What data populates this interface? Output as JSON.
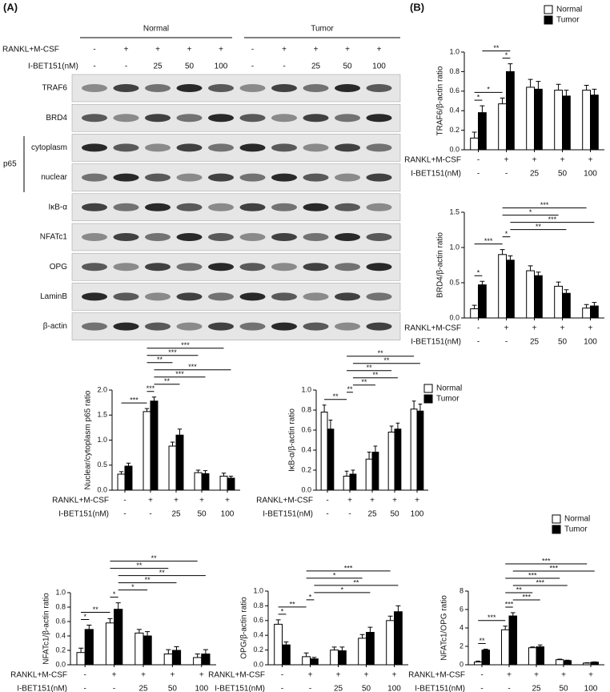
{
  "panel_labels": [
    "(A)",
    "(B)"
  ],
  "blot": {
    "groups": [
      "Normal",
      "Tumor"
    ],
    "treatments": [
      {
        "label": "RANKL+M-CSF",
        "values": [
          "-",
          "+",
          "+",
          "+",
          "+",
          "-",
          "+",
          "+",
          "+",
          "+"
        ]
      },
      {
        "label": "I-BET151(nM)",
        "values": [
          "-",
          "-",
          "25",
          "50",
          "100",
          "-",
          "-",
          "25",
          "50",
          "100"
        ]
      }
    ],
    "bands": [
      "TRAF6",
      "BRD4",
      "cytoplasm",
      "nuclear",
      "IκB-α",
      "NFATc1",
      "OPG",
      "LaminB",
      "β-actin"
    ],
    "band_group": "p65"
  },
  "chart_data": [
    {
      "type": "bar",
      "ylabel": "TRAF6/β-actin ratio",
      "legend": "top-right",
      "ylim": [
        0,
        1
      ],
      "yticks": [
        {
          "value": 0,
          "label": "0.0"
        },
        0.2,
        0.4,
        0.6,
        0.8,
        {
          "value": 1,
          "label": "1.0"
        }
      ],
      "conditions": [
        {
          "label": "RANKL+M-CSF",
          "values": [
            "-",
            "+",
            "+",
            "+",
            "+"
          ]
        },
        {
          "label": "I-BET151(nM)",
          "values": [
            "-",
            "-",
            "25",
            "50",
            "100"
          ]
        }
      ],
      "series": [
        {
          "name": "Normal",
          "color": "#ffffff",
          "values": [
            0.12,
            0.47,
            0.64,
            0.61,
            0.61
          ],
          "errors": [
            0.06,
            0.06,
            0.08,
            0.06,
            0.05
          ]
        },
        {
          "name": "Tumor",
          "color": "#000000",
          "values": [
            0.38,
            0.8,
            0.62,
            0.55,
            0.56
          ],
          "errors": [
            0.07,
            0.08,
            0.08,
            0.06,
            0.06
          ]
        }
      ],
      "annotations": [
        {
          "text": "*",
          "bars": [
            0,
            1
          ]
        },
        {
          "text": "*",
          "bars": [
            0,
            2
          ]
        },
        {
          "text": "*",
          "bars": [
            2,
            3
          ]
        },
        {
          "text": "**",
          "bars": [
            1,
            3
          ]
        }
      ]
    },
    {
      "type": "bar",
      "ylabel": "BRD4/β-actin ratio",
      "ylim": [
        0,
        1.5
      ],
      "yticks": [
        {
          "value": 0,
          "label": "0.0"
        },
        0.5,
        {
          "value": 1,
          "label": "1.0"
        },
        1.5
      ],
      "conditions": [
        {
          "label": "RANKL+M-CSF",
          "values": [
            "-",
            "+",
            "+",
            "+",
            "+"
          ]
        },
        {
          "label": "I-BET151(nM)",
          "values": [
            "-",
            "-",
            "25",
            "50",
            "100"
          ]
        }
      ],
      "series": [
        {
          "name": "Normal",
          "color": "#ffffff",
          "values": [
            0.13,
            0.9,
            0.67,
            0.45,
            0.14
          ],
          "errors": [
            0.05,
            0.07,
            0.07,
            0.06,
            0.05
          ]
        },
        {
          "name": "Tumor",
          "color": "#000000",
          "values": [
            0.47,
            0.82,
            0.6,
            0.35,
            0.17
          ],
          "errors": [
            0.05,
            0.06,
            0.05,
            0.05,
            0.05
          ]
        }
      ],
      "annotations": [
        {
          "text": "*",
          "bars": [
            0,
            1
          ]
        },
        {
          "text": "***",
          "bars": [
            0,
            2
          ]
        },
        {
          "text": "*",
          "bars": [
            2,
            3
          ]
        },
        {
          "text": "**",
          "bars": [
            3,
            7
          ]
        },
        {
          "text": "***",
          "bars": [
            3,
            9
          ]
        },
        {
          "text": "*",
          "bars": [
            2,
            6
          ]
        },
        {
          "text": "***",
          "bars": [
            2,
            8
          ]
        }
      ]
    },
    {
      "type": "bar",
      "ylabel": "Nuclear/cytoplasm p65 ratio",
      "ylim": [
        0,
        2
      ],
      "yticks": [
        {
          "value": 0,
          "label": "0.0"
        },
        0.5,
        {
          "value": 1,
          "label": "1.0"
        },
        1.5,
        {
          "value": 2,
          "label": "2.0"
        }
      ],
      "conditions": [
        {
          "label": "RANKL+M-CSF",
          "values": [
            "-",
            "+",
            "+",
            "+",
            "+"
          ]
        },
        {
          "label": "I-BET151(nM)",
          "values": [
            "-",
            "-",
            "25",
            "50",
            "100"
          ]
        }
      ],
      "series": [
        {
          "name": "Normal",
          "color": "#ffffff",
          "values": [
            0.32,
            1.57,
            0.88,
            0.35,
            0.28
          ],
          "errors": [
            0.05,
            0.06,
            0.08,
            0.05,
            0.06
          ]
        },
        {
          "name": "Tumor",
          "color": "#000000",
          "values": [
            0.48,
            1.78,
            1.1,
            0.33,
            0.24
          ],
          "errors": [
            0.06,
            0.08,
            0.12,
            0.06,
            0.04
          ]
        }
      ],
      "annotations": [
        {
          "text": "***",
          "bars": [
            0,
            2
          ]
        },
        {
          "text": "***",
          "bars": [
            2,
            3
          ]
        },
        {
          "text": "**",
          "bars": [
            3,
            5
          ]
        },
        {
          "text": "***",
          "bars": [
            3,
            7
          ]
        },
        {
          "text": "***",
          "bars": [
            3,
            9
          ]
        },
        {
          "text": "**",
          "bars": [
            2,
            4
          ]
        },
        {
          "text": "***",
          "bars": [
            2,
            6
          ]
        },
        {
          "text": "***",
          "bars": [
            2,
            8
          ]
        }
      ]
    },
    {
      "type": "bar",
      "ylabel": "IκB-α/β-actin ratio",
      "legend": "top-right",
      "ylim": [
        0,
        1
      ],
      "yticks": [
        {
          "value": 0,
          "label": "0.0"
        },
        0.2,
        0.4,
        0.6,
        0.8,
        {
          "value": 1,
          "label": "1.0"
        }
      ],
      "conditions": [
        {
          "label": "RANKL+M-CSF",
          "values": [
            "-",
            "+",
            "+",
            "+",
            "+"
          ]
        },
        {
          "label": "I-BET151(nM)",
          "values": [
            "-",
            "-",
            "25",
            "50",
            "100"
          ]
        }
      ],
      "series": [
        {
          "name": "Normal",
          "color": "#ffffff",
          "values": [
            0.78,
            0.14,
            0.31,
            0.58,
            0.81
          ],
          "errors": [
            0.07,
            0.05,
            0.07,
            0.06,
            0.08
          ]
        },
        {
          "name": "Tumor",
          "color": "#000000",
          "values": [
            0.61,
            0.16,
            0.38,
            0.61,
            0.79
          ],
          "errors": [
            0.09,
            0.04,
            0.06,
            0.06,
            0.07
          ]
        }
      ],
      "annotations": [
        {
          "text": "**",
          "bars": [
            0,
            2
          ]
        },
        {
          "text": "**",
          "bars": [
            2,
            3
          ]
        },
        {
          "text": "**",
          "bars": [
            3,
            5
          ]
        },
        {
          "text": "**",
          "bars": [
            3,
            7
          ]
        },
        {
          "text": "**",
          "bars": [
            2,
            6
          ]
        },
        {
          "text": "**",
          "bars": [
            3,
            9
          ]
        },
        {
          "text": "**",
          "bars": [
            2,
            8
          ]
        }
      ]
    },
    {
      "type": "bar",
      "ylabel": "NFATc1/β-actin ratio",
      "ylim": [
        0,
        1
      ],
      "yticks": [
        {
          "value": 0,
          "label": "0.0"
        },
        0.2,
        0.4,
        0.6,
        0.8,
        {
          "value": 1,
          "label": "1.0"
        }
      ],
      "conditions": [
        {
          "label": "RANKL+M-CSF",
          "values": [
            "-",
            "+",
            "+",
            "+",
            "+"
          ]
        },
        {
          "label": "I-BET151(nM)",
          "values": [
            "-",
            "-",
            "25",
            "50",
            "100"
          ]
        }
      ],
      "series": [
        {
          "name": "Normal",
          "color": "#ffffff",
          "values": [
            0.17,
            0.58,
            0.44,
            0.15,
            0.1
          ],
          "errors": [
            0.06,
            0.06,
            0.05,
            0.06,
            0.05
          ]
        },
        {
          "name": "Tumor",
          "color": "#000000",
          "values": [
            0.49,
            0.77,
            0.4,
            0.2,
            0.15
          ],
          "errors": [
            0.06,
            0.09,
            0.06,
            0.05,
            0.06
          ]
        }
      ],
      "annotations": [
        {
          "text": "*",
          "bars": [
            0,
            1
          ]
        },
        {
          "text": "**",
          "bars": [
            0,
            2
          ]
        },
        {
          "text": "*",
          "bars": [
            2,
            3
          ]
        },
        {
          "text": "*",
          "bars": [
            3,
            5
          ]
        },
        {
          "text": "**",
          "bars": [
            3,
            7
          ]
        },
        {
          "text": "**",
          "bars": [
            3,
            9
          ]
        },
        {
          "text": "**",
          "bars": [
            2,
            6
          ]
        },
        {
          "text": "**",
          "bars": [
            2,
            8
          ]
        }
      ]
    },
    {
      "type": "bar",
      "ylabel": "OPG/β-actin ratio",
      "ylim": [
        0,
        1
      ],
      "yticks": [
        {
          "value": 0,
          "label": "0.0"
        },
        0.2,
        0.4,
        0.6,
        0.8,
        {
          "value": 1,
          "label": "1.0"
        }
      ],
      "conditions": [
        {
          "label": "RANKL+M-CSF",
          "values": [
            "-",
            "+",
            "+",
            "+",
            "+"
          ]
        },
        {
          "label": "I-BET151(nM)",
          "values": [
            "-",
            "-",
            "25",
            "50",
            "100"
          ]
        }
      ],
      "series": [
        {
          "name": "Normal",
          "color": "#ffffff",
          "values": [
            0.55,
            0.11,
            0.2,
            0.36,
            0.6
          ],
          "errors": [
            0.06,
            0.05,
            0.04,
            0.05,
            0.06
          ]
        },
        {
          "name": "Tumor",
          "color": "#000000",
          "values": [
            0.27,
            0.08,
            0.19,
            0.44,
            0.72
          ],
          "errors": [
            0.04,
            0.02,
            0.05,
            0.07,
            0.08
          ]
        }
      ],
      "annotations": [
        {
          "text": "*",
          "bars": [
            0,
            1
          ]
        },
        {
          "text": "**",
          "bars": [
            0,
            2
          ]
        },
        {
          "text": "*",
          "bars": [
            2,
            3
          ]
        },
        {
          "text": "*",
          "bars": [
            3,
            7
          ]
        },
        {
          "text": "**",
          "bars": [
            3,
            9
          ]
        },
        {
          "text": "*",
          "bars": [
            2,
            6
          ]
        },
        {
          "text": "***",
          "bars": [
            2,
            8
          ]
        }
      ]
    },
    {
      "type": "bar",
      "ylabel": "NFATc1/OPG ratio",
      "legend": "top-right",
      "ylim": [
        0,
        8
      ],
      "yticks": [
        0,
        2,
        4,
        6,
        8
      ],
      "conditions": [
        {
          "label": "RANKL+M-CSF",
          "values": [
            "-",
            "+",
            "+",
            "+",
            "+"
          ]
        },
        {
          "label": "I-BET151(nM)",
          "values": [
            "-",
            "-",
            "25",
            "50",
            "100"
          ]
        }
      ],
      "series": [
        {
          "name": "Normal",
          "color": "#ffffff",
          "values": [
            0.3,
            3.8,
            1.85,
            0.55,
            0.18
          ],
          "errors": [
            0.1,
            0.4,
            0.08,
            0.06,
            0.04
          ]
        },
        {
          "name": "Tumor",
          "color": "#000000",
          "values": [
            1.6,
            5.3,
            1.95,
            0.45,
            0.28
          ],
          "errors": [
            0.1,
            0.35,
            0.2,
            0.05,
            0.04
          ]
        }
      ],
      "annotations": [
        {
          "text": "**",
          "bars": [
            0,
            1
          ]
        },
        {
          "text": "***",
          "bars": [
            0,
            2
          ]
        },
        {
          "text": "***",
          "bars": [
            2,
            3
          ]
        },
        {
          "text": "***",
          "bars": [
            3,
            5
          ]
        },
        {
          "text": "**",
          "bars": [
            2,
            4
          ]
        },
        {
          "text": "***",
          "bars": [
            3,
            7
          ]
        },
        {
          "text": "***",
          "bars": [
            2,
            6
          ]
        },
        {
          "text": "***",
          "bars": [
            3,
            9
          ]
        },
        {
          "text": "***",
          "bars": [
            2,
            8
          ]
        }
      ]
    }
  ]
}
